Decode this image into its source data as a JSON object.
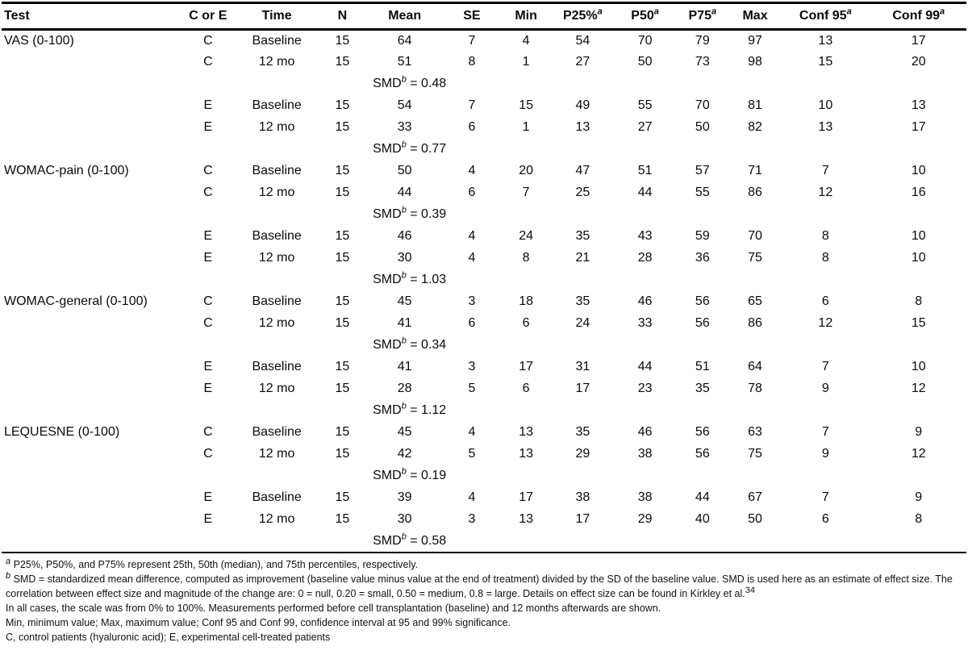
{
  "colors": {
    "background": "#ffffff",
    "text": "#0a0a0a",
    "rule": "#000000"
  },
  "table": {
    "smd_label": "SMD",
    "smd_sup": "b",
    "smd_equals": " = ",
    "columns": [
      {
        "label": "Test",
        "sup": ""
      },
      {
        "label": "C or E",
        "sup": ""
      },
      {
        "label": "Time",
        "sup": ""
      },
      {
        "label": "N",
        "sup": ""
      },
      {
        "label": "Mean",
        "sup": ""
      },
      {
        "label": "SE",
        "sup": ""
      },
      {
        "label": "Min",
        "sup": ""
      },
      {
        "label": "P25%",
        "sup": "a"
      },
      {
        "label": "P50",
        "sup": "a"
      },
      {
        "label": "P75",
        "sup": "a"
      },
      {
        "label": "Max",
        "sup": ""
      },
      {
        "label": "Conf 95",
        "sup": "a"
      },
      {
        "label": "Conf 99",
        "sup": "a"
      }
    ],
    "rows": [
      {
        "type": "data",
        "test": "VAS (0-100)",
        "group": "C",
        "time": "Baseline",
        "n": "15",
        "mean": "64",
        "se": "7",
        "min": "4",
        "p25": "54",
        "p50": "70",
        "p75": "79",
        "max": "97",
        "conf95": "13",
        "conf99": "17"
      },
      {
        "type": "data",
        "test": "",
        "group": "C",
        "time": "12 mo",
        "n": "15",
        "mean": "51",
        "se": "8",
        "min": "1",
        "p25": "27",
        "p50": "50",
        "p75": "73",
        "max": "98",
        "conf95": "15",
        "conf99": "20"
      },
      {
        "type": "smd",
        "smd": "0.48"
      },
      {
        "type": "data",
        "test": "",
        "group": "E",
        "time": "Baseline",
        "n": "15",
        "mean": "54",
        "se": "7",
        "min": "15",
        "p25": "49",
        "p50": "55",
        "p75": "70",
        "max": "81",
        "conf95": "10",
        "conf99": "13"
      },
      {
        "type": "data",
        "test": "",
        "group": "E",
        "time": "12 mo",
        "n": "15",
        "mean": "33",
        "se": "6",
        "min": "1",
        "p25": "13",
        "p50": "27",
        "p75": "50",
        "max": "82",
        "conf95": "13",
        "conf99": "17"
      },
      {
        "type": "smd",
        "smd": "0.77"
      },
      {
        "type": "data",
        "test": "WOMAC-pain (0-100)",
        "group": "C",
        "time": "Baseline",
        "n": "15",
        "mean": "50",
        "se": "4",
        "min": "20",
        "p25": "47",
        "p50": "51",
        "p75": "57",
        "max": "71",
        "conf95": "7",
        "conf99": "10"
      },
      {
        "type": "data",
        "test": "",
        "group": "C",
        "time": "12 mo",
        "n": "15",
        "mean": "44",
        "se": "6",
        "min": "7",
        "p25": "25",
        "p50": "44",
        "p75": "55",
        "max": "86",
        "conf95": "12",
        "conf99": "16"
      },
      {
        "type": "smd",
        "smd": "0.39"
      },
      {
        "type": "data",
        "test": "",
        "group": "E",
        "time": "Baseline",
        "n": "15",
        "mean": "46",
        "se": "4",
        "min": "24",
        "p25": "35",
        "p50": "43",
        "p75": "59",
        "max": "70",
        "conf95": "8",
        "conf99": "10"
      },
      {
        "type": "data",
        "test": "",
        "group": "E",
        "time": "12 mo",
        "n": "15",
        "mean": "30",
        "se": "4",
        "min": "8",
        "p25": "21",
        "p50": "28",
        "p75": "36",
        "max": "75",
        "conf95": "8",
        "conf99": "10"
      },
      {
        "type": "smd",
        "smd": "1.03"
      },
      {
        "type": "data",
        "test": "WOMAC-general (0-100)",
        "group": "C",
        "time": "Baseline",
        "n": "15",
        "mean": "45",
        "se": "3",
        "min": "18",
        "p25": "35",
        "p50": "46",
        "p75": "56",
        "max": "65",
        "conf95": "6",
        "conf99": "8"
      },
      {
        "type": "data",
        "test": "",
        "group": "C",
        "time": "12 mo",
        "n": "15",
        "mean": "41",
        "se": "6",
        "min": "6",
        "p25": "24",
        "p50": "33",
        "p75": "56",
        "max": "86",
        "conf95": "12",
        "conf99": "15"
      },
      {
        "type": "smd",
        "smd": "0.34"
      },
      {
        "type": "data",
        "test": "",
        "group": "E",
        "time": "Baseline",
        "n": "15",
        "mean": "41",
        "se": "3",
        "min": "17",
        "p25": "31",
        "p50": "44",
        "p75": "51",
        "max": "64",
        "conf95": "7",
        "conf99": "10"
      },
      {
        "type": "data",
        "test": "",
        "group": "E",
        "time": "12 mo",
        "n": "15",
        "mean": "28",
        "se": "5",
        "min": "6",
        "p25": "17",
        "p50": "23",
        "p75": "35",
        "max": "78",
        "conf95": "9",
        "conf99": "12"
      },
      {
        "type": "smd",
        "smd": "1.12"
      },
      {
        "type": "data",
        "test": "LEQUESNE (0-100)",
        "group": "C",
        "time": "Baseline",
        "n": "15",
        "mean": "45",
        "se": "4",
        "min": "13",
        "p25": "35",
        "p50": "46",
        "p75": "56",
        "max": "63",
        "conf95": "7",
        "conf99": "9"
      },
      {
        "type": "data",
        "test": "",
        "group": "C",
        "time": "12 mo",
        "n": "15",
        "mean": "42",
        "se": "5",
        "min": "13",
        "p25": "29",
        "p50": "38",
        "p75": "56",
        "max": "75",
        "conf95": "9",
        "conf99": "12"
      },
      {
        "type": "smd",
        "smd": "0.19"
      },
      {
        "type": "data",
        "test": "",
        "group": "E",
        "time": "Baseline",
        "n": "15",
        "mean": "39",
        "se": "4",
        "min": "17",
        "p25": "38",
        "p50": "38",
        "p75": "44",
        "max": "67",
        "conf95": "7",
        "conf99": "9"
      },
      {
        "type": "data",
        "test": "",
        "group": "E",
        "time": "12 mo",
        "n": "15",
        "mean": "30",
        "se": "3",
        "min": "13",
        "p25": "17",
        "p50": "29",
        "p75": "40",
        "max": "50",
        "conf95": "6",
        "conf99": "8"
      },
      {
        "type": "smd",
        "smd": "0.58"
      }
    ]
  },
  "footnotes": {
    "a": {
      "sup": "a",
      "text": " P25%, P50%, and P75% represent 25th, 50th (median), and 75th percentiles, respectively."
    },
    "b": {
      "sup": "b",
      "text": " SMD = standardized mean difference, computed as improvement (baseline value minus value at the end of treatment) divided by the SD of the baseline value. SMD is used here as an estimate of effect size. The correlation between effect size and magnitude of the change are: 0 = null, 0.20 = small, 0.50 = medium, 0.8 = large. Details on effect size can be found in Kirkley et al.",
      "ref": "34"
    },
    "scale": "In all cases, the scale was from 0% to 100%. Measurements performed before cell transplantation (baseline) and 12 months afterwards are shown.",
    "abbrev": "Min, minimum value; Max, maximum value; Conf 95 and Conf 99, confidence interval at 95 and 99% significance.",
    "groups": "C, control patients (hyaluronic acid); E, experimental cell-treated patients"
  }
}
